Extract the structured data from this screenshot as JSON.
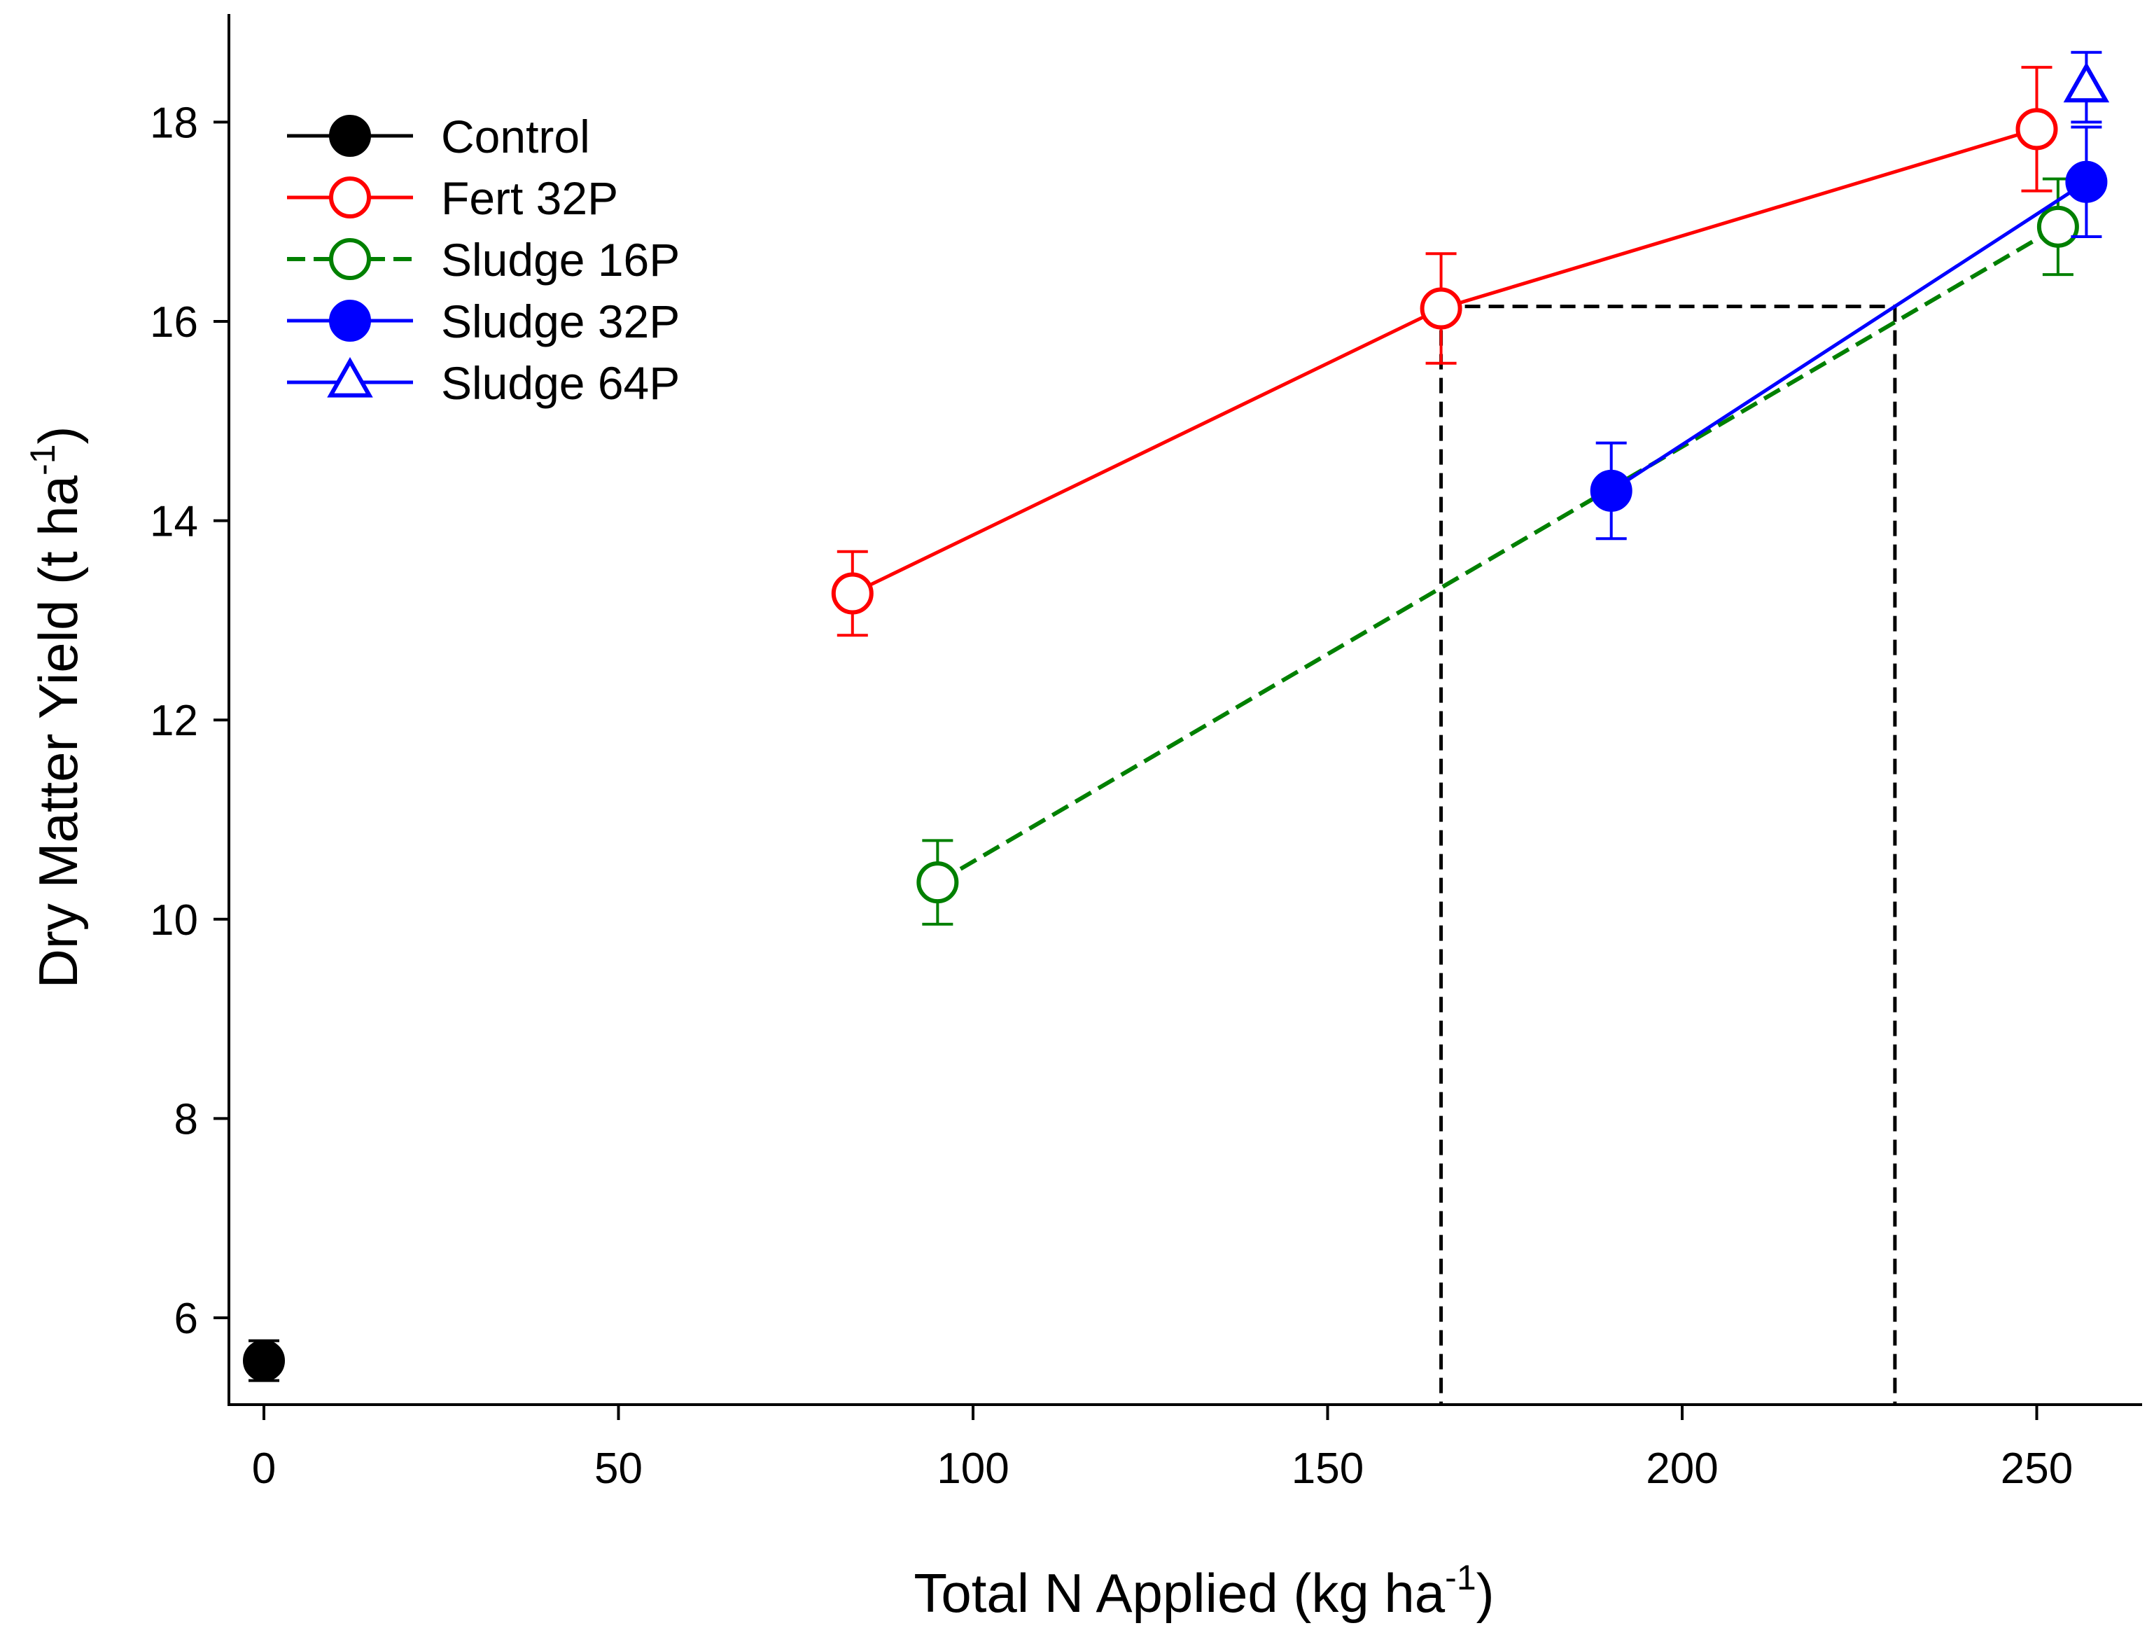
{
  "chart_data": {
    "type": "line",
    "title": "",
    "xlabel": "Total N Applied (kg ha",
    "xlabel_sup": "-1",
    "xlabel_end": ")",
    "ylabel": "Dry Matter Yield (t ha",
    "ylabel_sup": "-1",
    "ylabel_end": ")",
    "xlim": [
      -5,
      265
    ],
    "ylim": [
      5,
      19
    ],
    "xticks": [
      0,
      50,
      100,
      150,
      200,
      250
    ],
    "yticks": [
      6,
      8,
      10,
      12,
      14,
      16,
      18
    ],
    "legend_position": "top-left",
    "series": [
      {
        "name": "Control",
        "color": "#000000",
        "marker": "circle",
        "filled": true,
        "dashed": false,
        "x": [
          0
        ],
        "y": [
          5.57
        ],
        "err": [
          0.2
        ]
      },
      {
        "name": "Fert 32P",
        "color": "#ff0000",
        "marker": "circle",
        "filled": false,
        "dashed": false,
        "x": [
          83,
          166,
          250
        ],
        "y": [
          13.27,
          16.13,
          17.93
        ],
        "err": [
          0.42,
          0.55,
          0.62
        ]
      },
      {
        "name": "Sludge 16P",
        "color": "#008000",
        "marker": "circle",
        "filled": false,
        "dashed": true,
        "x": [
          95,
          253
        ],
        "y": [
          10.37,
          16.95
        ],
        "err": [
          0.42,
          0.48
        ]
      },
      {
        "name": "Sludge 32P",
        "color": "#0000ff",
        "marker": "circle",
        "filled": true,
        "dashed": false,
        "x": [
          190,
          257
        ],
        "y": [
          14.3,
          17.4
        ],
        "err": [
          0.48,
          0.55
        ]
      },
      {
        "name": "Sludge 64P",
        "color": "#0000ff",
        "marker": "triangle",
        "filled": false,
        "dashed": false,
        "x": [
          257
        ],
        "y": [
          18.35
        ],
        "err": [
          0.35
        ]
      }
    ],
    "reference_lines": {
      "color": "#000000",
      "y_level": 16.15,
      "x_left": 166,
      "x_right": 230
    }
  }
}
